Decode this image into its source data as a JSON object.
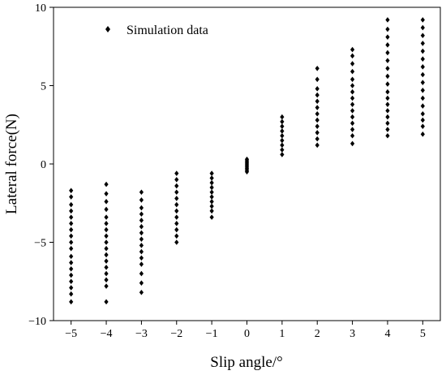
{
  "chart_data": {
    "type": "scatter",
    "title": "",
    "xlabel": "Slip angle/°",
    "ylabel": "Lateral force(N)",
    "xlim": [
      -5.5,
      5.5
    ],
    "ylim": [
      -10,
      10
    ],
    "xticks": [
      -5,
      -4,
      -3,
      -2,
      -1,
      0,
      1,
      2,
      3,
      4,
      5
    ],
    "xtick_labels": [
      "−5",
      "−4",
      "−3",
      "−2",
      "−1",
      "0",
      "1",
      "2",
      "3",
      "4",
      "5"
    ],
    "yticks": [
      -10,
      -5,
      0,
      5,
      10
    ],
    "ytick_labels": [
      "−10",
      "−5",
      "0",
      "5",
      "10"
    ],
    "grid": false,
    "legend_position": "top-left",
    "marker": "diamond",
    "color": "#000000",
    "series": [
      {
        "name": "Simulation data",
        "points": [
          {
            "x": -5,
            "y": [
              -1.7,
              -2.1,
              -2.6,
              -3.0,
              -3.4,
              -3.8,
              -4.2,
              -4.6,
              -5.0,
              -5.4,
              -5.9,
              -6.3,
              -6.7,
              -7.1,
              -7.5,
              -7.9,
              -8.3,
              -8.8
            ]
          },
          {
            "x": -4,
            "y": [
              -1.3,
              -1.9,
              -2.4,
              -2.9,
              -3.4,
              -3.8,
              -4.2,
              -4.6,
              -5.0,
              -5.4,
              -5.8,
              -6.2,
              -6.6,
              -7.0,
              -7.4,
              -7.8,
              -8.8
            ]
          },
          {
            "x": -3,
            "y": [
              -1.8,
              -2.3,
              -2.8,
              -3.2,
              -3.6,
              -4.0,
              -4.4,
              -4.8,
              -5.2,
              -5.6,
              -6.0,
              -6.4,
              -7.0,
              -7.6,
              -8.2
            ]
          },
          {
            "x": -2,
            "y": [
              -0.6,
              -1.0,
              -1.4,
              -1.8,
              -2.2,
              -2.6,
              -3.0,
              -3.4,
              -3.8,
              -4.2,
              -4.6,
              -5.0
            ]
          },
          {
            "x": -1,
            "y": [
              -0.6,
              -0.9,
              -1.2,
              -1.5,
              -1.8,
              -2.1,
              -2.4,
              -2.7,
              -3.0,
              -3.4
            ]
          },
          {
            "x": 0,
            "y": [
              0.3,
              0.2,
              0.1,
              0.0,
              -0.1,
              -0.2,
              -0.3,
              -0.4,
              -0.5
            ]
          },
          {
            "x": 1,
            "y": [
              3.0,
              2.7,
              2.4,
              2.1,
              1.8,
              1.5,
              1.2,
              0.9,
              0.6
            ]
          },
          {
            "x": 2,
            "y": [
              6.1,
              5.4,
              4.8,
              4.4,
              4.0,
              3.6,
              3.2,
              2.8,
              2.4,
              2.0,
              1.6,
              1.2
            ]
          },
          {
            "x": 3,
            "y": [
              7.3,
              6.9,
              6.4,
              5.9,
              5.4,
              5.0,
              4.6,
              4.2,
              3.8,
              3.4,
              3.0,
              2.6,
              2.2,
              1.8,
              1.3
            ]
          },
          {
            "x": 4,
            "y": [
              9.2,
              8.6,
              8.1,
              7.6,
              7.1,
              6.6,
              6.1,
              5.6,
              5.1,
              4.6,
              4.2,
              3.8,
              3.4,
              3.0,
              2.6,
              2.2,
              1.8
            ]
          },
          {
            "x": 5,
            "y": [
              9.2,
              8.7,
              8.2,
              7.7,
              7.2,
              6.7,
              6.2,
              5.7,
              5.2,
              4.7,
              4.2,
              3.7,
              3.2,
              2.8,
              2.4,
              1.9
            ]
          }
        ]
      }
    ]
  }
}
